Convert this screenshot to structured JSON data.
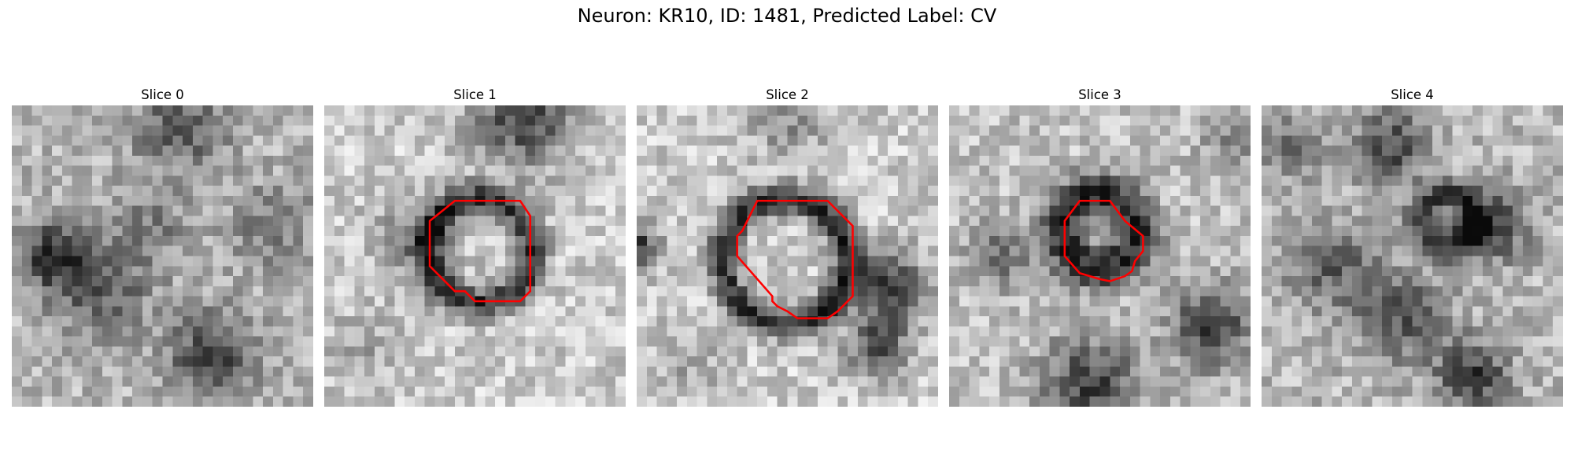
{
  "figure": {
    "title": "Neuron: KR10, ID: 1481, Predicted Label: CV",
    "contour_color": "#ff0000"
  },
  "slices": [
    {
      "label": "Slice 0",
      "has_contour": false
    },
    {
      "label": "Slice 1",
      "has_contour": true
    },
    {
      "label": "Slice 2",
      "has_contour": true
    },
    {
      "label": "Slice 3",
      "has_contour": true
    },
    {
      "label": "Slice 4",
      "has_contour": false
    }
  ]
}
